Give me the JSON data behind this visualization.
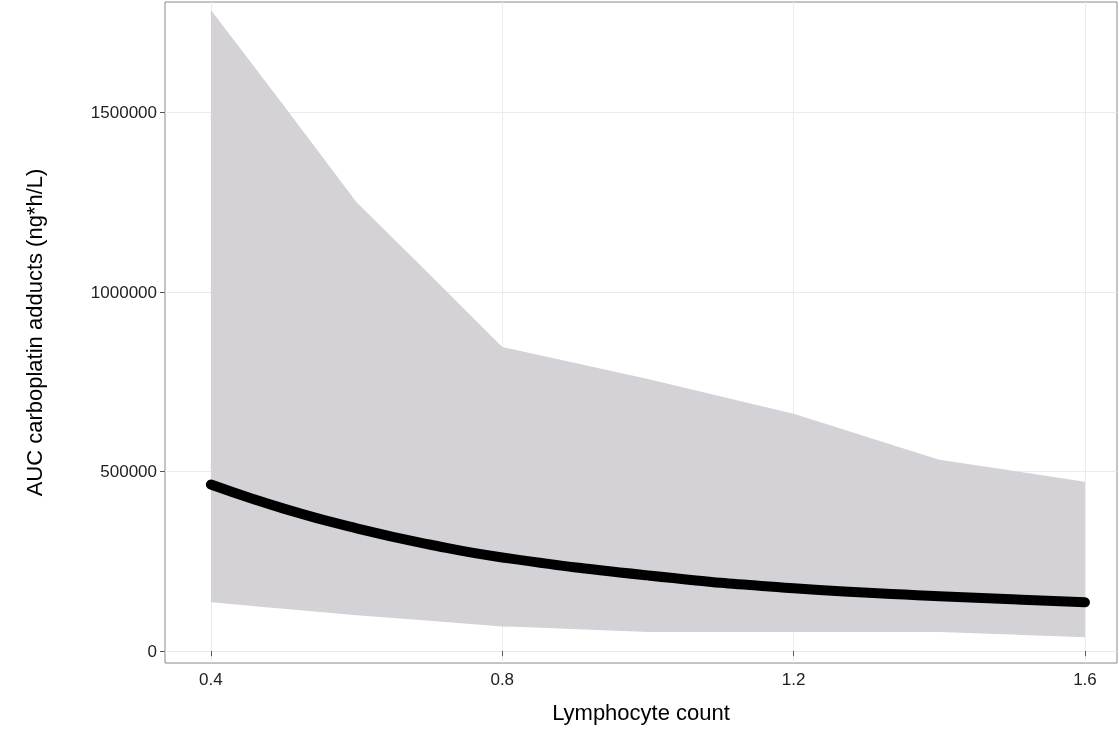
{
  "chart_data": {
    "type": "line",
    "xlabel": "Lymphocyte count",
    "ylabel": "AUC carboplatin adducts (ng*h/L)",
    "x": [
      0.4,
      0.5,
      0.6,
      0.7,
      0.8,
      1.0,
      1.2,
      1.4,
      1.6
    ],
    "series": [
      {
        "color": "#000000",
        "values": [
          464000,
          397000,
          342000,
          297000,
          261000,
          211000,
          175000,
          153000,
          136000
        ],
        "lower": [
          136000,
          118000,
          100000,
          85000,
          69000,
          53000,
          53000,
          53000,
          39000
        ],
        "upper": [
          1786000,
          1520000,
          1250000,
          1050000,
          847000,
          758000,
          661000,
          533000,
          472000
        ]
      }
    ],
    "xlim": [
      0.337,
      1.644
    ],
    "ylim": [
      -33000,
      1808000
    ],
    "xticks": [
      0.4,
      0.8,
      1.2,
      1.6
    ],
    "yticks": [
      0,
      500000,
      1000000,
      1500000
    ],
    "grid": true,
    "line_style": "solid"
  }
}
